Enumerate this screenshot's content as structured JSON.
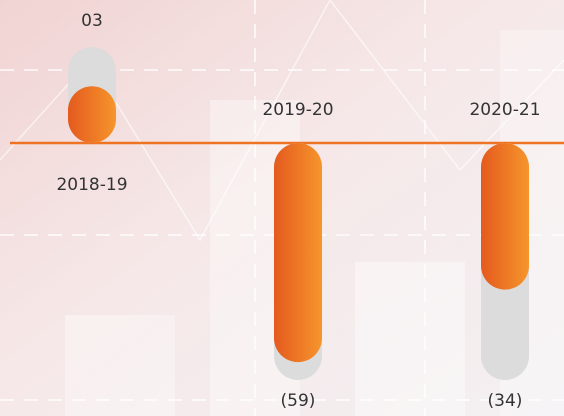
{
  "chart_data": {
    "type": "bar",
    "categories": [
      "2018-19",
      "2019-20",
      "2020-21"
    ],
    "values": [
      3,
      -59,
      -34
    ],
    "value_labels": [
      "03",
      "(59)",
      "(34)"
    ],
    "color": "#ee7424"
  }
}
